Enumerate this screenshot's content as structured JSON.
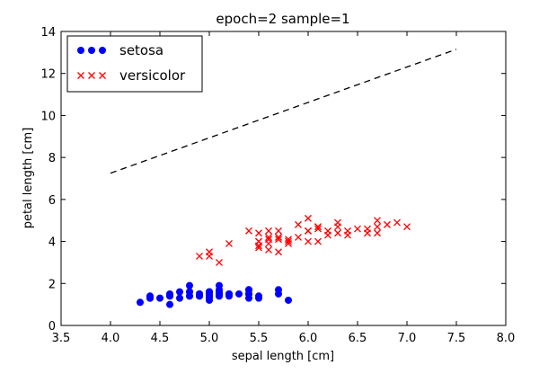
{
  "chart_data": {
    "type": "scatter",
    "title": "epoch=2  sample=1",
    "xlabel": "sepal length [cm]",
    "ylabel": "petal length [cm]",
    "xlim": [
      3.5,
      8.0
    ],
    "ylim": [
      0,
      14
    ],
    "xticks": [
      3.5,
      4.0,
      4.5,
      5.0,
      5.5,
      6.0,
      6.5,
      7.0,
      7.5,
      8.0
    ],
    "yticks": [
      0,
      2,
      4,
      6,
      8,
      10,
      12,
      14
    ],
    "xtick_labels": [
      "3.5",
      "4.0",
      "4.5",
      "5.0",
      "5.5",
      "6.0",
      "6.5",
      "7.0",
      "7.5",
      "8.0"
    ],
    "ytick_labels": [
      "0",
      "2",
      "4",
      "6",
      "8",
      "10",
      "12",
      "14"
    ],
    "legend_position": "top-left",
    "series": [
      {
        "name": "setosa",
        "marker": "circle",
        "color": "#0000ff",
        "points": [
          [
            5.1,
            1.4
          ],
          [
            4.9,
            1.4
          ],
          [
            4.7,
            1.3
          ],
          [
            4.6,
            1.5
          ],
          [
            5.0,
            1.4
          ],
          [
            5.4,
            1.7
          ],
          [
            4.6,
            1.4
          ],
          [
            5.0,
            1.5
          ],
          [
            4.4,
            1.4
          ],
          [
            4.9,
            1.5
          ],
          [
            5.4,
            1.5
          ],
          [
            4.8,
            1.6
          ],
          [
            4.8,
            1.4
          ],
          [
            4.3,
            1.1
          ],
          [
            5.8,
            1.2
          ],
          [
            5.7,
            1.5
          ],
          [
            5.4,
            1.3
          ],
          [
            5.1,
            1.4
          ],
          [
            5.7,
            1.7
          ],
          [
            5.1,
            1.5
          ],
          [
            5.4,
            1.7
          ],
          [
            5.1,
            1.5
          ],
          [
            4.6,
            1.0
          ],
          [
            5.1,
            1.7
          ],
          [
            4.8,
            1.9
          ],
          [
            5.0,
            1.6
          ],
          [
            5.0,
            1.6
          ],
          [
            5.2,
            1.5
          ],
          [
            5.2,
            1.4
          ],
          [
            4.7,
            1.6
          ],
          [
            4.8,
            1.6
          ],
          [
            5.4,
            1.5
          ],
          [
            5.2,
            1.5
          ],
          [
            5.5,
            1.4
          ],
          [
            4.9,
            1.5
          ],
          [
            5.0,
            1.2
          ],
          [
            5.5,
            1.3
          ],
          [
            4.9,
            1.4
          ],
          [
            4.4,
            1.3
          ],
          [
            5.1,
            1.5
          ],
          [
            5.0,
            1.3
          ],
          [
            4.5,
            1.3
          ],
          [
            4.4,
            1.3
          ],
          [
            5.0,
            1.6
          ],
          [
            5.1,
            1.9
          ],
          [
            4.8,
            1.4
          ],
          [
            5.1,
            1.6
          ],
          [
            4.6,
            1.4
          ],
          [
            5.3,
            1.5
          ],
          [
            5.0,
            1.4
          ]
        ]
      },
      {
        "name": "versicolor",
        "marker": "x",
        "color": "#ff0000",
        "points": [
          [
            7.0,
            4.7
          ],
          [
            6.4,
            4.5
          ],
          [
            6.9,
            4.9
          ],
          [
            5.5,
            4.0
          ],
          [
            6.5,
            4.6
          ],
          [
            5.7,
            4.5
          ],
          [
            6.3,
            4.7
          ],
          [
            4.9,
            3.3
          ],
          [
            6.6,
            4.6
          ],
          [
            5.2,
            3.9
          ],
          [
            5.0,
            3.5
          ],
          [
            5.9,
            4.2
          ],
          [
            6.0,
            4.0
          ],
          [
            6.1,
            4.7
          ],
          [
            5.6,
            3.6
          ],
          [
            6.7,
            4.4
          ],
          [
            5.6,
            4.5
          ],
          [
            5.8,
            4.1
          ],
          [
            6.2,
            4.5
          ],
          [
            5.6,
            3.9
          ],
          [
            5.9,
            4.8
          ],
          [
            6.1,
            4.0
          ],
          [
            6.3,
            4.9
          ],
          [
            6.1,
            4.7
          ],
          [
            6.4,
            4.3
          ],
          [
            6.6,
            4.4
          ],
          [
            6.8,
            4.8
          ],
          [
            6.7,
            5.0
          ],
          [
            6.0,
            4.5
          ],
          [
            5.7,
            3.5
          ],
          [
            5.5,
            3.8
          ],
          [
            5.5,
            3.7
          ],
          [
            5.8,
            3.9
          ],
          [
            6.0,
            5.1
          ],
          [
            5.4,
            4.5
          ],
          [
            6.0,
            4.5
          ],
          [
            6.7,
            4.7
          ],
          [
            6.3,
            4.4
          ],
          [
            5.6,
            4.1
          ],
          [
            5.5,
            4.0
          ],
          [
            5.5,
            4.4
          ],
          [
            6.1,
            4.6
          ],
          [
            5.8,
            4.0
          ],
          [
            5.0,
            3.3
          ],
          [
            5.6,
            4.2
          ],
          [
            5.7,
            4.2
          ],
          [
            5.7,
            4.2
          ],
          [
            6.2,
            4.3
          ],
          [
            5.1,
            3.0
          ],
          [
            5.7,
            4.1
          ]
        ]
      }
    ],
    "decision_line": {
      "style": "dashed",
      "color": "#000000",
      "x": [
        4.0,
        7.5
      ],
      "y": [
        7.25,
        13.15
      ]
    }
  }
}
